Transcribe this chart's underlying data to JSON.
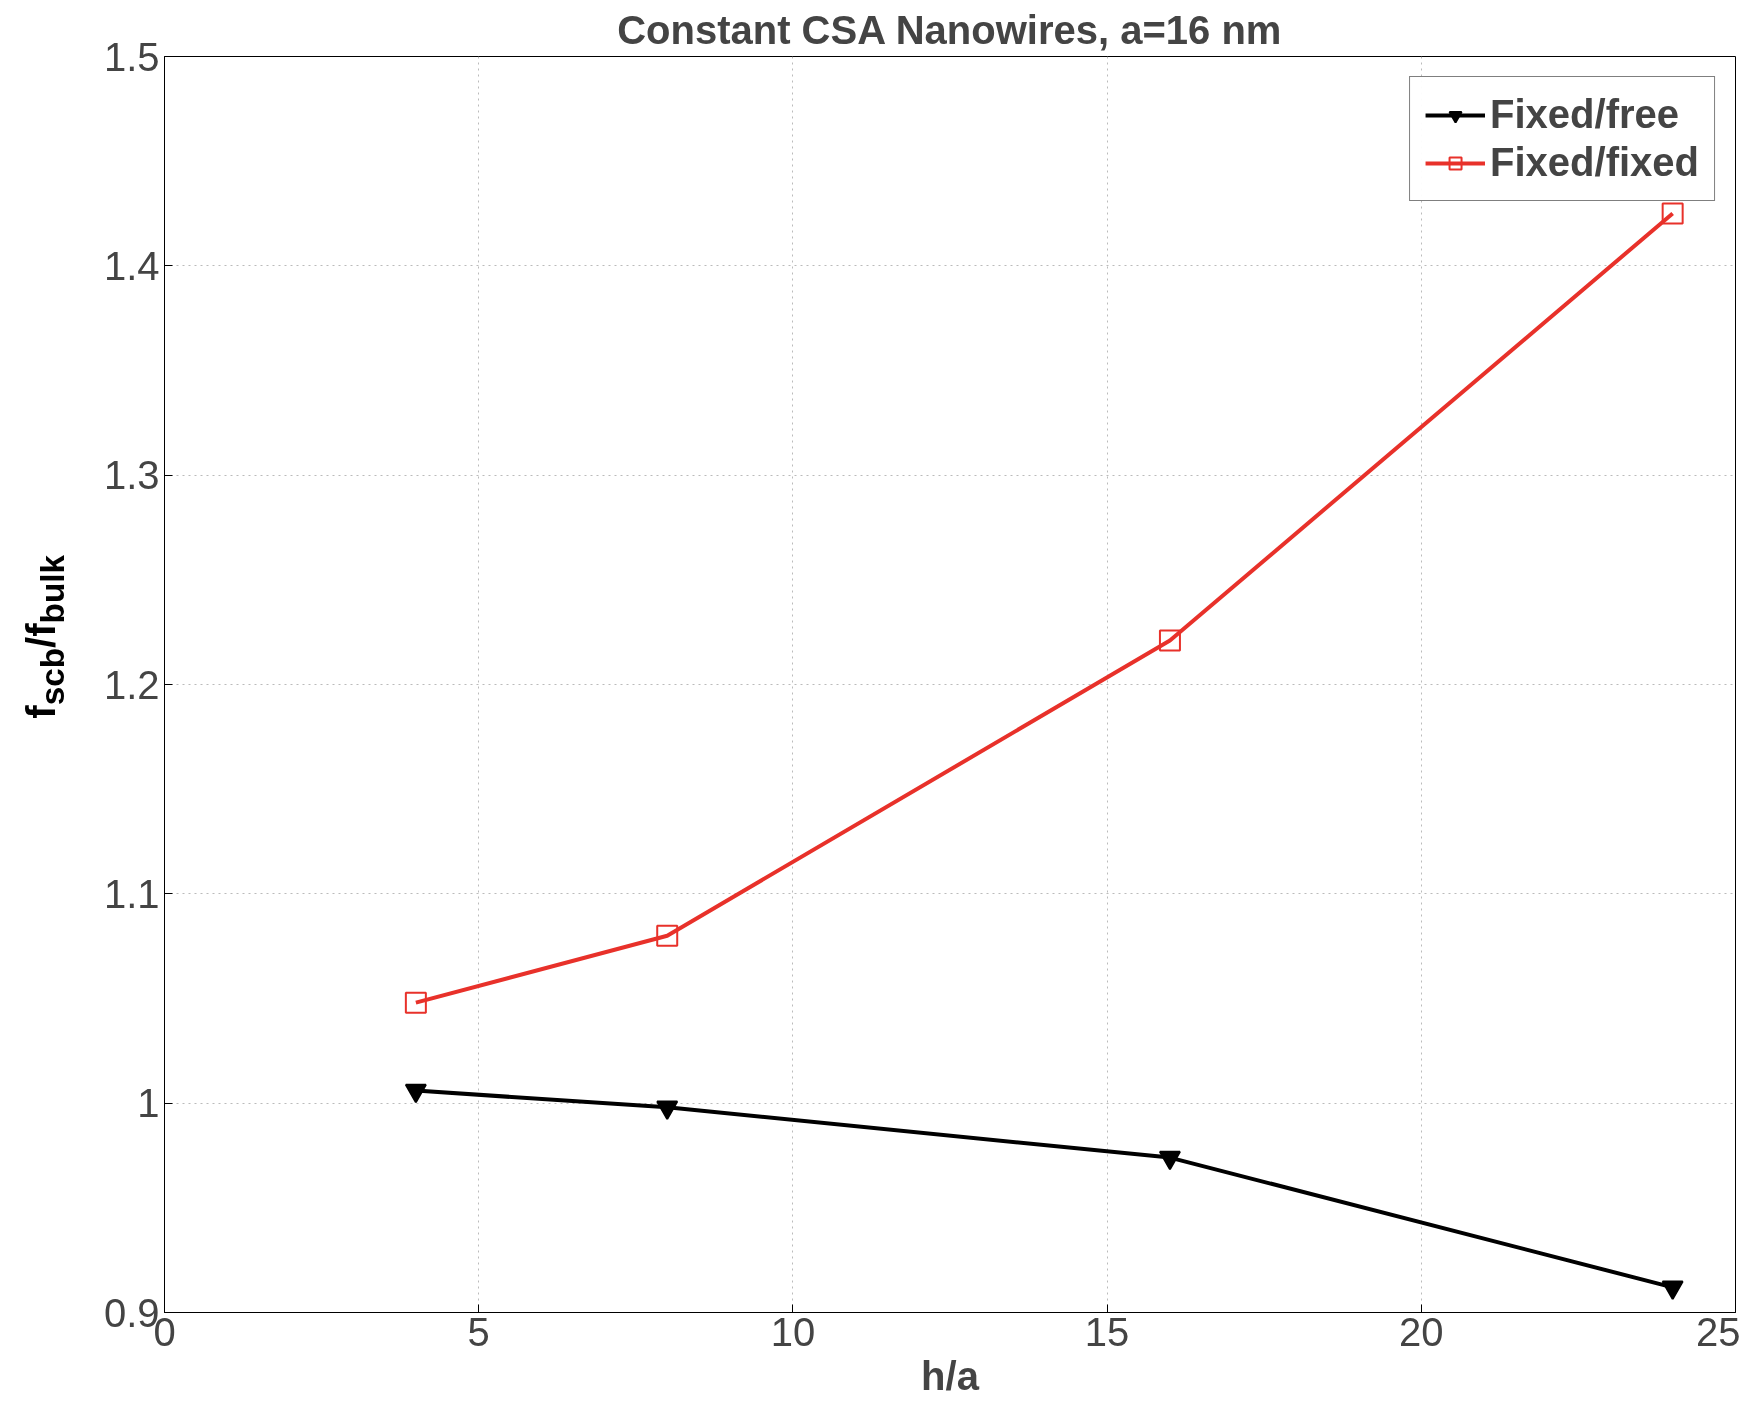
{
  "chart_data": {
    "type": "line",
    "title": "Constant CSA Nanowires, a=16 nm",
    "xlabel": "h/a",
    "ylabel": "f$_{scb}$/f$_{bulk}$",
    "x": [
      4,
      8,
      16,
      24
    ],
    "series": [
      {
        "name": "Fixed/free",
        "color": "#000000",
        "marker": "triangle",
        "values": [
          1.006,
          0.998,
          0.974,
          0.912
        ]
      },
      {
        "name": "Fixed/fixed",
        "color": "#e8312a",
        "marker": "square",
        "values": [
          1.048,
          1.08,
          1.221,
          1.425
        ]
      }
    ],
    "xlim": [
      0,
      25
    ],
    "ylim": [
      0.9,
      1.5
    ],
    "xticks": [
      0,
      5,
      10,
      15,
      20,
      25
    ],
    "yticks": [
      0.9,
      1,
      1.1,
      1.2,
      1.3,
      1.4,
      1.5
    ],
    "grid": true,
    "legend": "top right",
    "line_style": "solid"
  }
}
